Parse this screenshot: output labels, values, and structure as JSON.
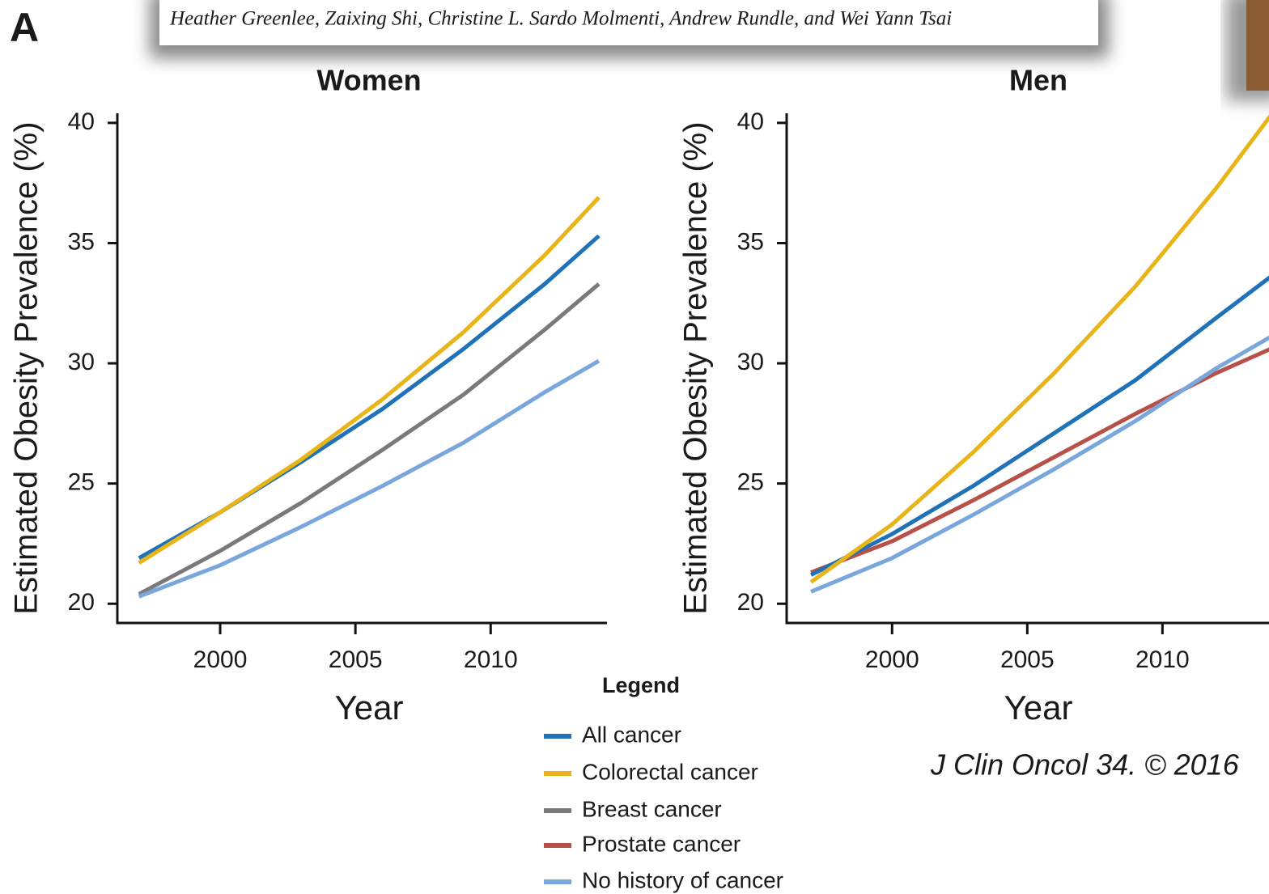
{
  "header": {
    "panel_label": "A",
    "authors": "Heather Greenlee, Zaixing Shi, Christine L. Sardo Molmenti, Andrew Rundle, and Wei Yann Tsai"
  },
  "chart_data": [
    {
      "type": "line",
      "title": "Women",
      "x_label": "Year",
      "y_label": "Estimated Obesity Prevalence (%)",
      "x": [
        1997,
        2000,
        2003,
        2006,
        2009,
        2012,
        2014
      ],
      "xlim": [
        1996.2,
        2014.3
      ],
      "xticks": [
        2000,
        2005,
        2010
      ],
      "ylim": [
        19.2,
        40.4
      ],
      "yticks": [
        20,
        25,
        30,
        35,
        40
      ],
      "series": [
        {
          "name": "All cancer",
          "color": "#1f72b8",
          "values": [
            21.9,
            23.8,
            25.9,
            28.1,
            30.6,
            33.3,
            35.3
          ]
        },
        {
          "name": "Colorectal cancer",
          "color": "#e8b418",
          "values": [
            21.7,
            23.8,
            26.0,
            28.5,
            31.3,
            34.5,
            36.9
          ]
        },
        {
          "name": "Breast cancer",
          "color": "#7a7a7a",
          "values": [
            20.4,
            22.2,
            24.2,
            26.4,
            28.7,
            31.4,
            33.3
          ]
        },
        {
          "name": "No history of cancer",
          "color": "#79a7dc",
          "values": [
            20.3,
            21.6,
            23.2,
            24.9,
            26.7,
            28.8,
            30.1
          ]
        }
      ]
    },
    {
      "type": "line",
      "title": "Men",
      "x_label": "Year",
      "y_label": "Estimated Obesity Prevalence (%)",
      "x": [
        1997,
        2000,
        2003,
        2006,
        2009,
        2012,
        2014
      ],
      "xlim": [
        1996.1,
        2014.3
      ],
      "xticks": [
        2000,
        2005,
        2010
      ],
      "ylim": [
        19.2,
        40.4
      ],
      "yticks": [
        20,
        25,
        30,
        35,
        40
      ],
      "series": [
        {
          "name": "Prostate cancer",
          "color": "#b8504a",
          "values": [
            21.3,
            22.6,
            24.3,
            26.1,
            27.9,
            29.6,
            30.6
          ]
        },
        {
          "name": "No history of cancer",
          "color": "#79a7dc",
          "values": [
            20.5,
            21.9,
            23.7,
            25.6,
            27.6,
            29.8,
            31.1
          ]
        },
        {
          "name": "All cancer",
          "color": "#1f72b8",
          "values": [
            21.2,
            22.9,
            24.9,
            27.1,
            29.3,
            31.9,
            33.6
          ]
        },
        {
          "name": "Colorectal cancer",
          "color": "#e8b418",
          "values": [
            20.9,
            23.3,
            26.3,
            29.6,
            33.2,
            37.3,
            40.3
          ]
        }
      ]
    }
  ],
  "legend": {
    "title": "Legend"
  },
  "citation": "J Clin Oncol 34. © 2016"
}
